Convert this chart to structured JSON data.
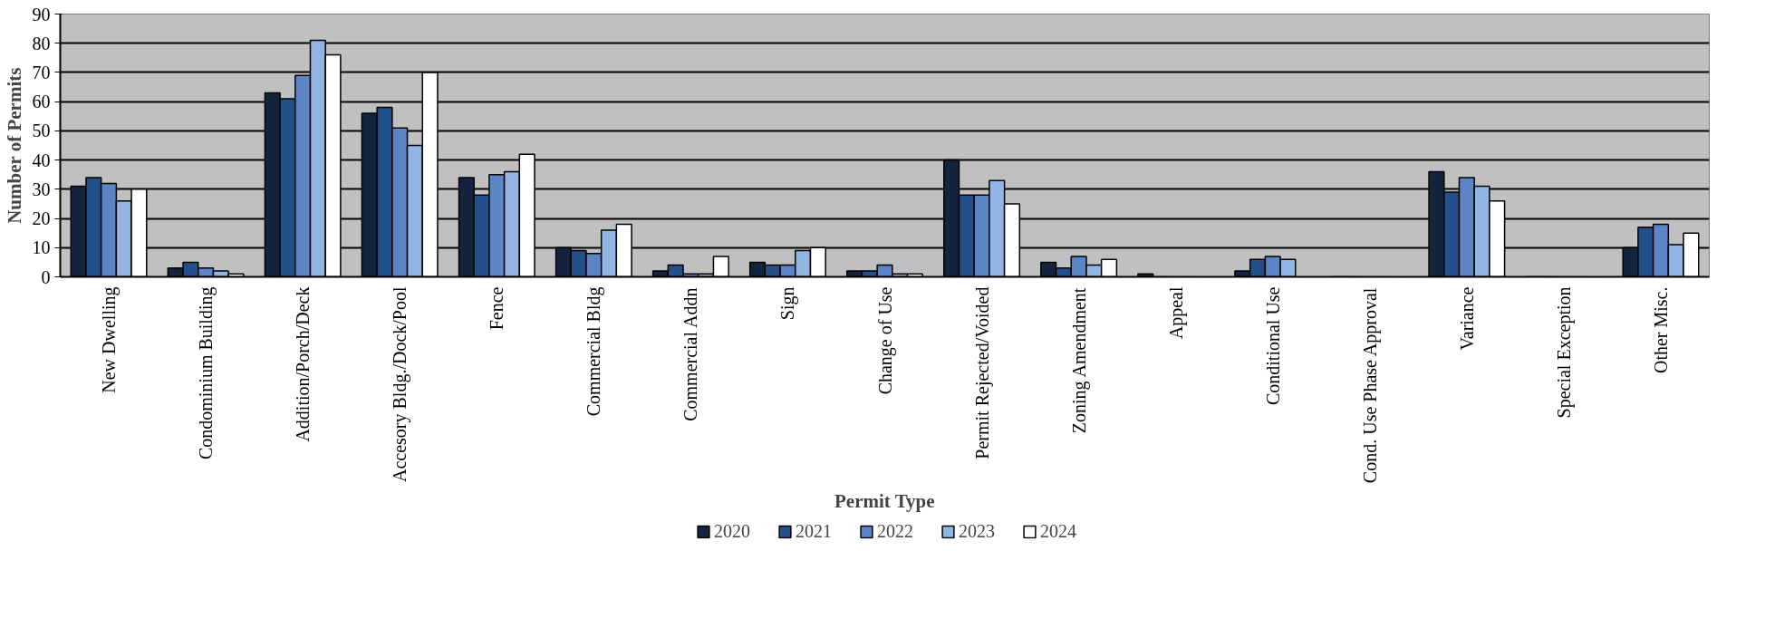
{
  "chart_data": {
    "type": "bar",
    "xlabel": "Permit Type",
    "ylabel": "Number of Permits",
    "categories": [
      "New Dwelling",
      "Condominium Building",
      "Addition/Porch/Deck",
      "Accesory Bldg./Dock/Pool",
      "Fence",
      "Commercial Bldg",
      "Commercial Addn",
      "Sign",
      "Change of Use",
      "Permit Rejected/Voided",
      "Zoning Amendment",
      "Appeal",
      "Conditional Use",
      "Cond. Use Phase Approval",
      "Variance",
      "Special Exception",
      "Other Misc."
    ],
    "series": [
      {
        "name": "2020",
        "color": "#14243f",
        "values": [
          31,
          3,
          63,
          56,
          34,
          10,
          2,
          5,
          2,
          40,
          5,
          1,
          2,
          0,
          36,
          0,
          10
        ]
      },
      {
        "name": "2021",
        "color": "#24508a",
        "values": [
          34,
          5,
          61,
          58,
          28,
          9,
          4,
          4,
          2,
          28,
          3,
          0,
          6,
          0,
          29,
          0,
          17
        ]
      },
      {
        "name": "2022",
        "color": "#5b85c4",
        "values": [
          32,
          3,
          69,
          51,
          35,
          8,
          1,
          4,
          4,
          28,
          7,
          0,
          7,
          0,
          34,
          0,
          18
        ]
      },
      {
        "name": "2023",
        "color": "#92b5e4",
        "values": [
          26,
          2,
          81,
          45,
          36,
          16,
          1,
          9,
          1,
          33,
          4,
          0,
          6,
          0,
          31,
          0,
          11
        ]
      },
      {
        "name": "2024",
        "color": "#ffffff",
        "values": [
          30,
          1,
          76,
          70,
          42,
          18,
          7,
          10,
          1,
          25,
          6,
          0,
          0,
          0,
          26,
          0,
          15
        ]
      }
    ],
    "ylim": [
      0,
      90
    ],
    "yticks": [
      0,
      10,
      20,
      30,
      40,
      50,
      60,
      70,
      80,
      90
    ],
    "grid": "y",
    "legend": "bottom"
  }
}
